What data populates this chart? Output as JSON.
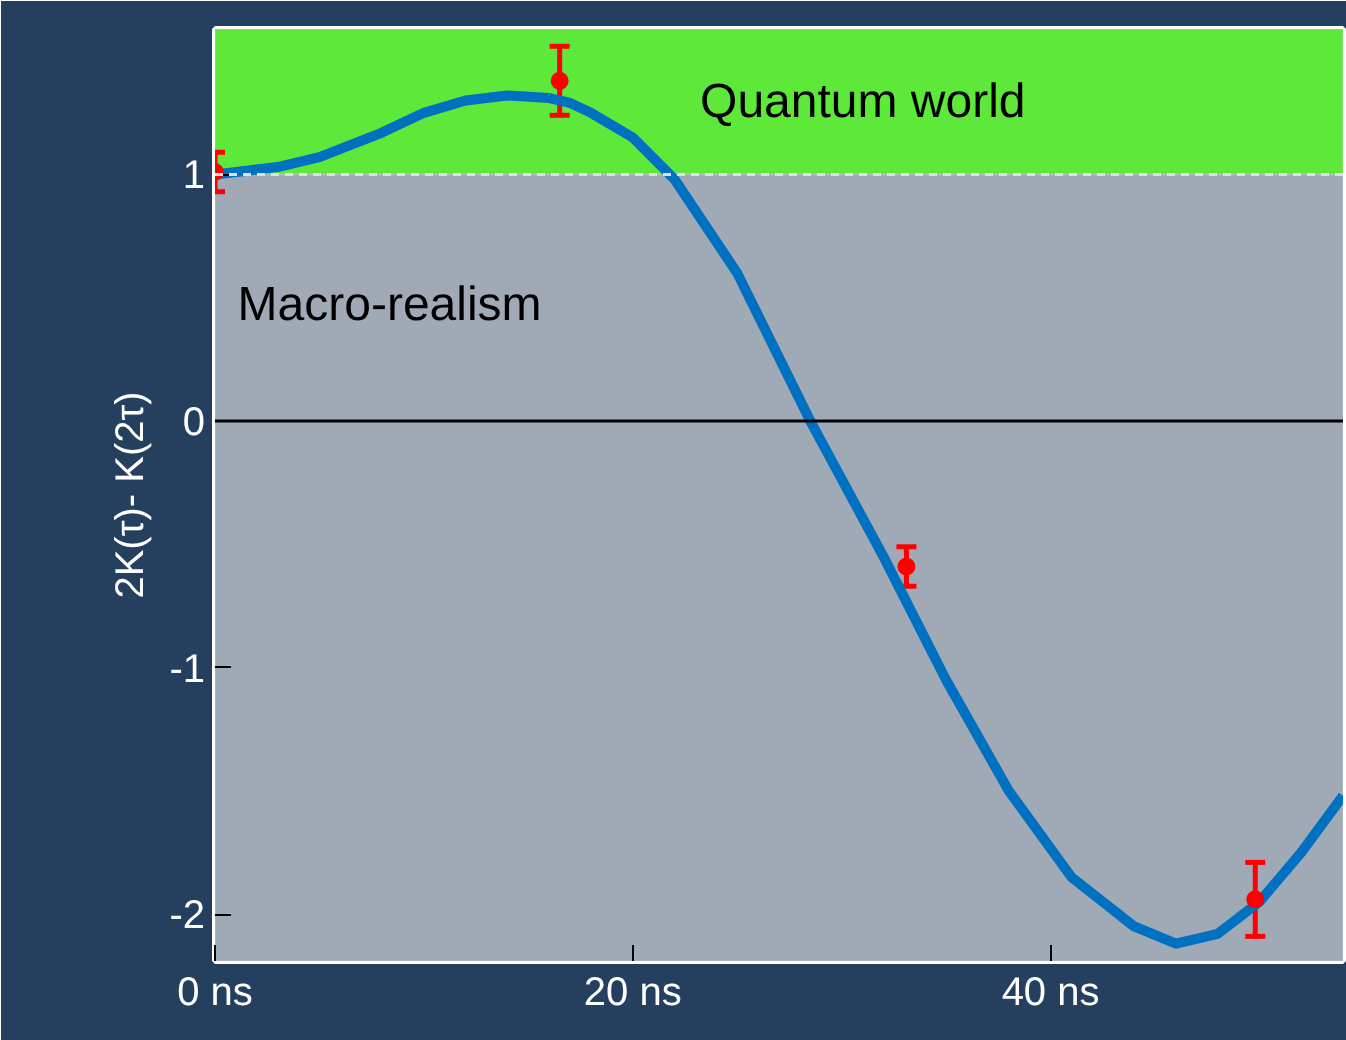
{
  "chart_data": {
    "type": "line",
    "ylabel": "2K(τ)- K(2τ)",
    "xlim": [
      0,
      54
    ],
    "ylim": [
      -2.19,
      1.59
    ],
    "xticks": [
      {
        "value": 0,
        "label": "0 ns"
      },
      {
        "value": 20,
        "label": "20 ns"
      },
      {
        "value": 40,
        "label": "40 ns"
      }
    ],
    "yticks": [
      -2,
      -1,
      0,
      1
    ],
    "grid": false,
    "series": [
      {
        "color": "#0070c0",
        "x": [
          0,
          3,
          5,
          8,
          10,
          12,
          14,
          16,
          17,
          18,
          20,
          22,
          25,
          28.5,
          32,
          35,
          38,
          41,
          44,
          46,
          48,
          50,
          52,
          54
        ],
        "values": [
          1.0,
          1.03,
          1.07,
          1.17,
          1.25,
          1.3,
          1.32,
          1.31,
          1.29,
          1.25,
          1.15,
          0.98,
          0.6,
          0.0,
          -0.55,
          -1.05,
          -1.5,
          -1.85,
          -2.05,
          -2.12,
          -2.08,
          -1.95,
          -1.75,
          -1.52
        ]
      },
      {
        "type": "scatter",
        "color": "#ff0000",
        "marker": "circle",
        "x": [
          0,
          16.5,
          33.1,
          49.8
        ],
        "values": [
          1.01,
          1.38,
          -0.59,
          -1.94
        ],
        "errors": [
          0.08,
          0.14,
          0.08,
          0.15
        ]
      }
    ],
    "bands": [
      {
        "axis": "y",
        "from": 1,
        "to": 1.59,
        "label": "Quantum world",
        "color": "#5ee83a"
      },
      {
        "axis": "y",
        "from": -2.19,
        "to": 1,
        "label": "Macro-realism",
        "color": "#a0aab7"
      }
    ],
    "ref_lines": [
      {
        "axis": "y",
        "value": 0,
        "color": "#000000",
        "line_style": "solid"
      },
      {
        "axis": "y",
        "value": 1,
        "color": "#e0e0e0",
        "line_style": "dashed"
      }
    ]
  }
}
